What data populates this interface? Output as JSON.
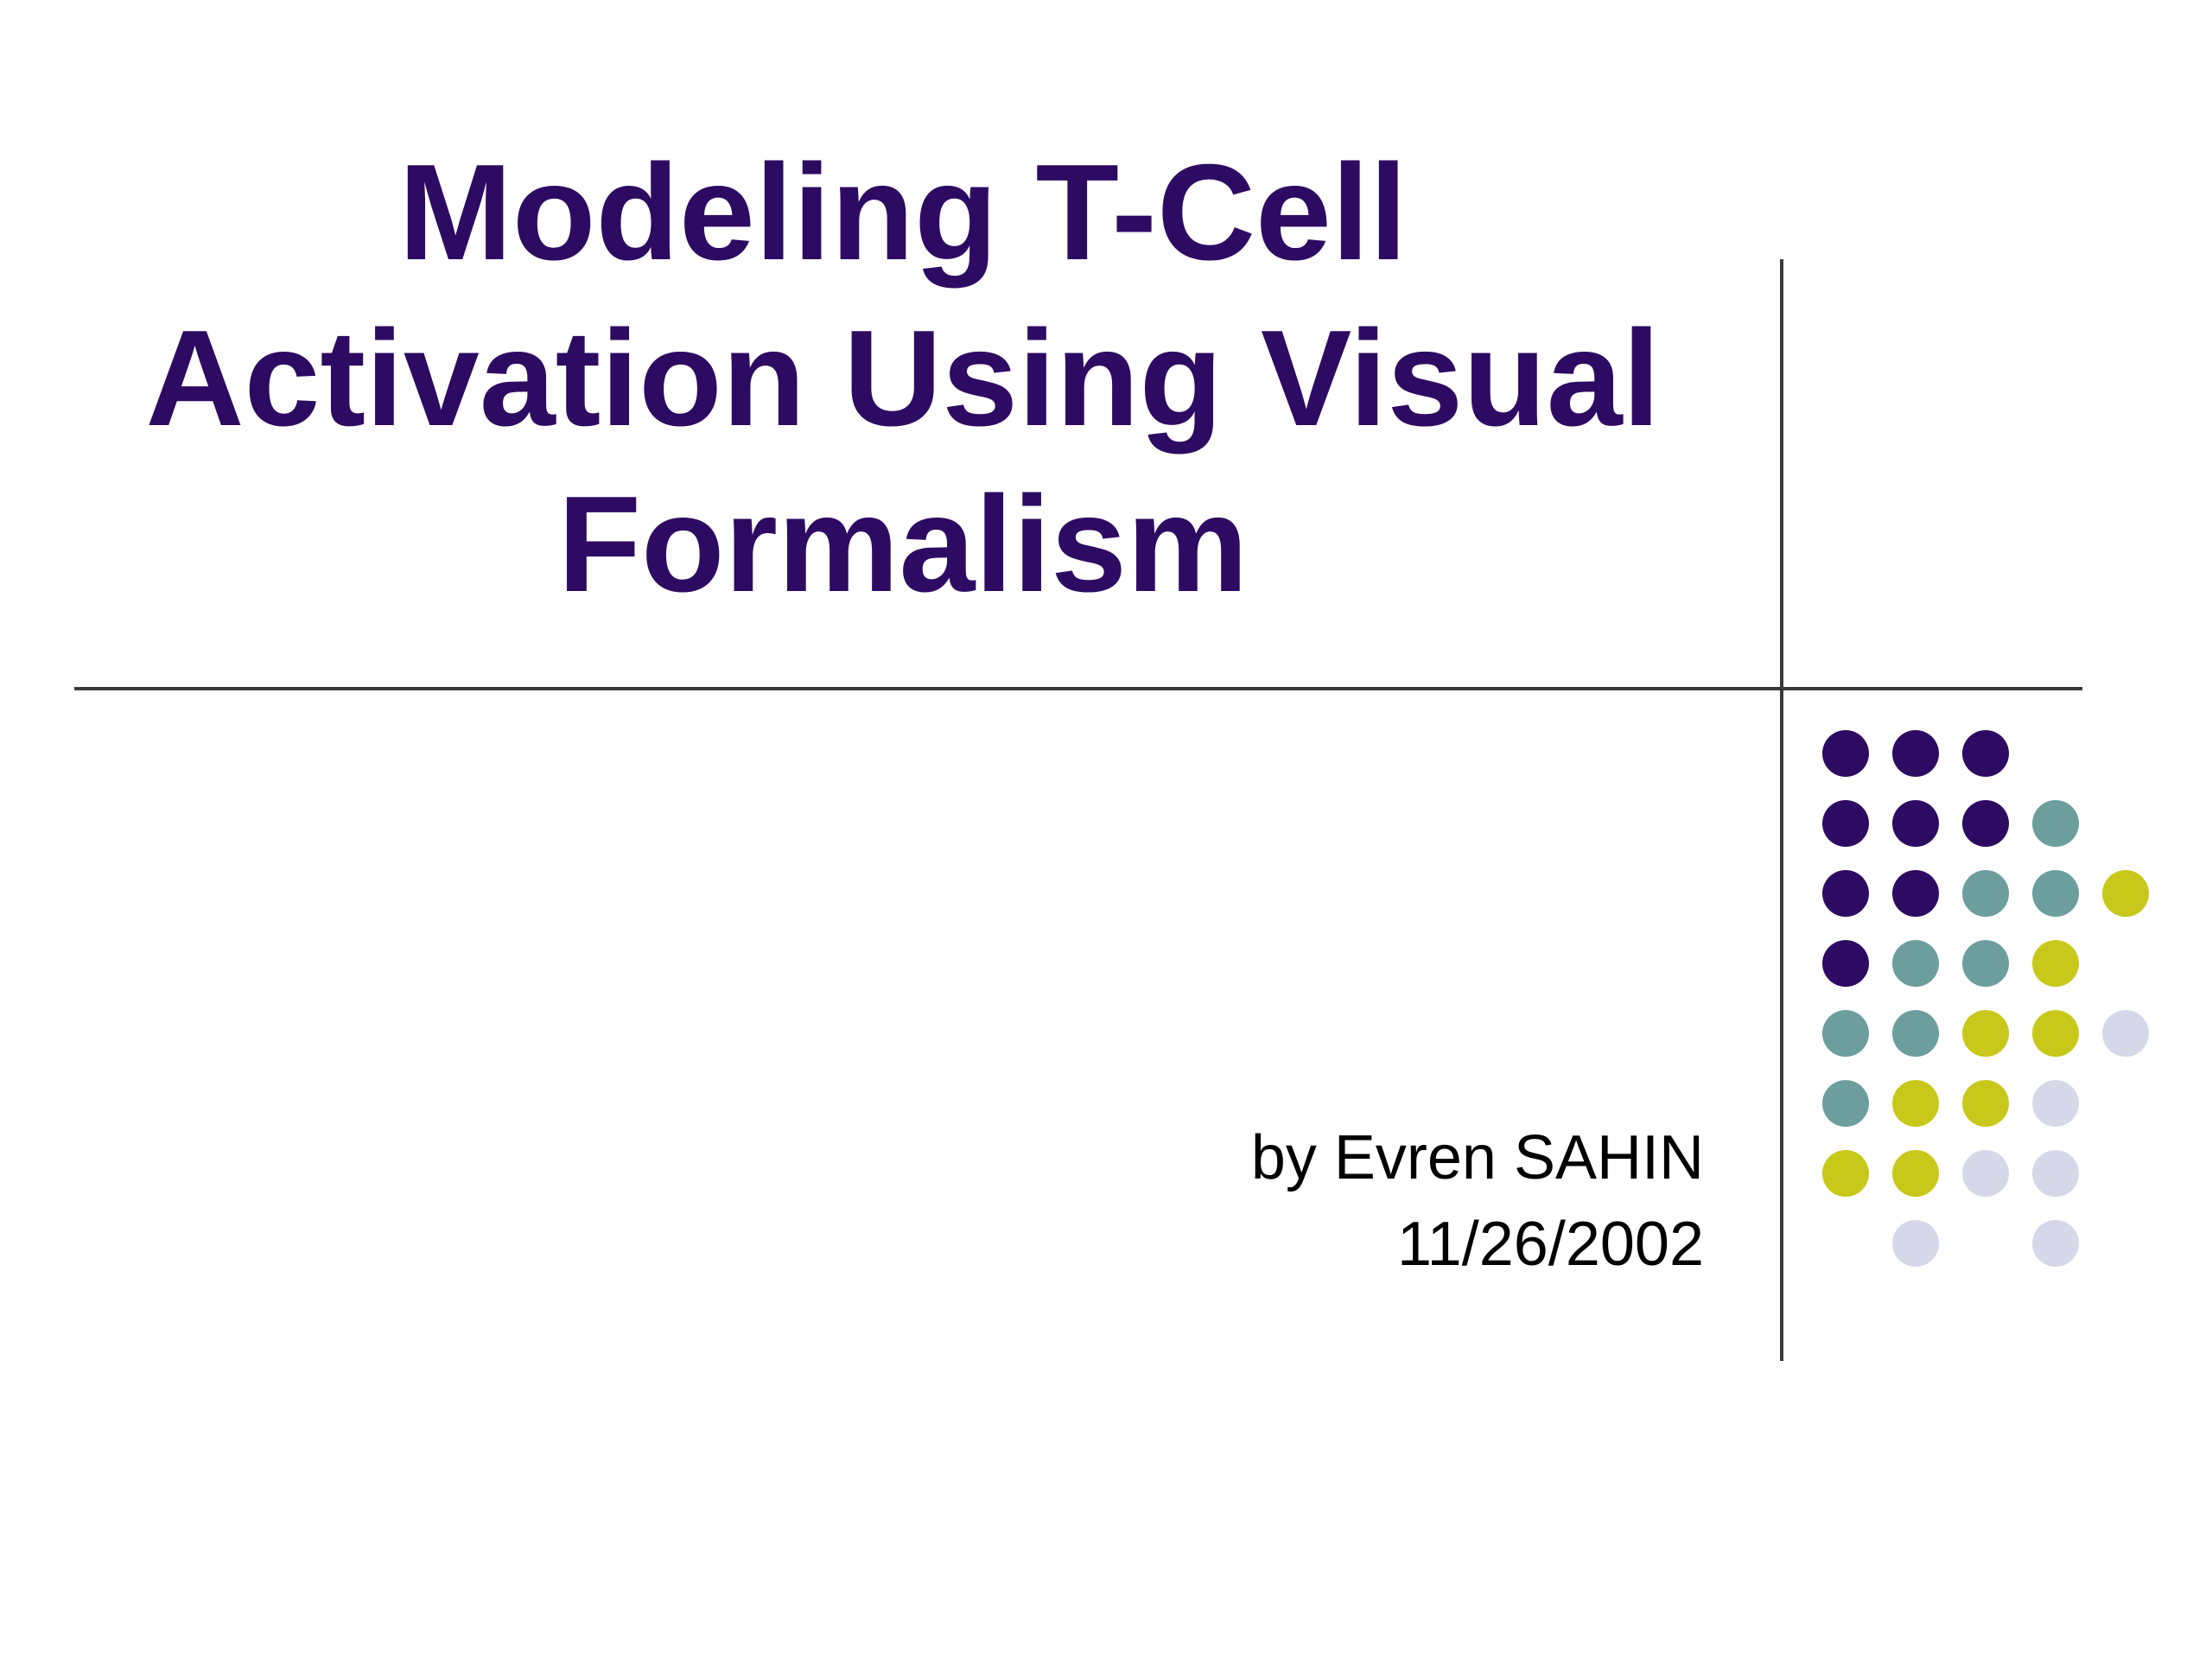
{
  "slide": {
    "title_lines": [
      "Modeling T-Cell",
      "Activation Using Visual",
      "Formalism"
    ],
    "author": "by Evren SAHIN",
    "date": "11/26/2002"
  },
  "colors": {
    "title": "#2e0b62",
    "rule": "#3a3a3a",
    "dot_purple": "#2e0b62",
    "dot_teal": "#6c9e9e",
    "dot_yellow": "#c8c81a",
    "dot_lavender": "#d6d8ea"
  },
  "dot_pattern": [
    [
      "purple",
      "purple",
      "purple",
      null,
      null
    ],
    [
      "purple",
      "purple",
      "purple",
      "teal",
      null
    ],
    [
      "purple",
      "purple",
      "teal",
      "teal",
      "yellow"
    ],
    [
      "purple",
      "teal",
      "teal",
      "yellow",
      null
    ],
    [
      "teal",
      "teal",
      "yellow",
      "yellow",
      "lavender"
    ],
    [
      "teal",
      "yellow",
      "yellow",
      "lavender",
      null
    ],
    [
      "yellow",
      "yellow",
      "lavender",
      "lavender",
      null
    ],
    [
      null,
      "lavender",
      null,
      "lavender",
      null
    ]
  ]
}
